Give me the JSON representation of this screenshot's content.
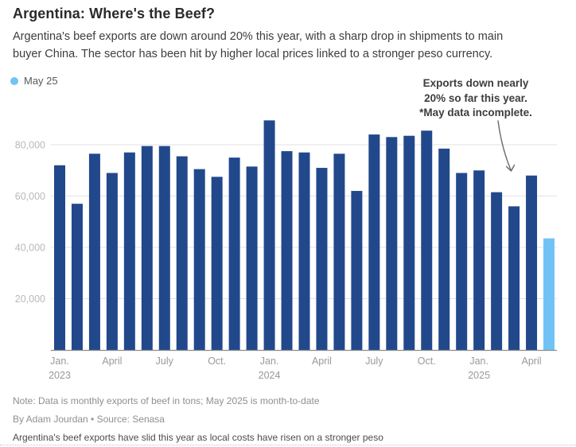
{
  "header": {
    "title": "Argentina: Where's the Beef?",
    "subtitle_line1": "Argentina's beef exports are down around 20% this year, with a sharp drop in shipments to main",
    "subtitle_line2": "buyer China. The sector has been hit by higher local prices linked to a stronger peso currency."
  },
  "legend": {
    "label": "May 25",
    "swatch_color": "#72C3F5"
  },
  "annotation": {
    "lines": [
      "Exports down nearly",
      "20% so far this year.",
      "*May data incomplete."
    ]
  },
  "chart_data": {
    "type": "bar",
    "title": "Argentina: Where's the Beef?",
    "categories": [
      "Jan 2023",
      "Feb 2023",
      "Mar 2023",
      "Apr 2023",
      "May 2023",
      "Jun 2023",
      "Jul 2023",
      "Aug 2023",
      "Sep 2023",
      "Oct 2023",
      "Nov 2023",
      "Dec 2023",
      "Jan 2024",
      "Feb 2024",
      "Mar 2024",
      "Apr 2024",
      "May 2024",
      "Jun 2024",
      "Jul 2024",
      "Aug 2024",
      "Sep 2024",
      "Oct 2024",
      "Nov 2024",
      "Dec 2024",
      "Jan 2025",
      "Feb 2025",
      "Mar 2025",
      "Apr 2025",
      "May 2025"
    ],
    "values": [
      72000,
      57000,
      76500,
      69000,
      77000,
      79500,
      79500,
      75500,
      70500,
      67500,
      75000,
      71500,
      89500,
      77500,
      77000,
      71000,
      76500,
      62000,
      84000,
      83000,
      83500,
      85500,
      78500,
      69000,
      70000,
      61500,
      56000,
      68000,
      43500
    ],
    "highlight_index": 28,
    "highlight_label": "May 25",
    "bar_color": "#22488C",
    "highlight_color": "#72C3F5",
    "grid_color": "#e3e3e3",
    "axis_color": "#8c8c8c",
    "ytick_color": "#b9b9b9",
    "xtick_color": "#999999",
    "ylim": [
      0,
      92000
    ],
    "grid": true,
    "legend_position": "top-left",
    "xlabel": "",
    "ylabel": "",
    "yticks": [
      {
        "value": 20000,
        "label": "20,000"
      },
      {
        "value": 40000,
        "label": "40,000"
      },
      {
        "value": 60000,
        "label": "60,000"
      },
      {
        "value": 80000,
        "label": "80,000"
      }
    ],
    "xticks": [
      {
        "index": 0,
        "label": "Jan.",
        "sublabel": "2023"
      },
      {
        "index": 3,
        "label": "April"
      },
      {
        "index": 6,
        "label": "July"
      },
      {
        "index": 9,
        "label": "Oct."
      },
      {
        "index": 12,
        "label": "Jan.",
        "sublabel": "2024"
      },
      {
        "index": 15,
        "label": "April"
      },
      {
        "index": 18,
        "label": "July"
      },
      {
        "index": 21,
        "label": "Oct."
      },
      {
        "index": 24,
        "label": "Jan.",
        "sublabel": "2025"
      },
      {
        "index": 27,
        "label": "April"
      }
    ]
  },
  "footer": {
    "note": "Note: Data is monthly exports of beef in tons; May 2025 is month-to-date",
    "byline": "By Adam Jourdan • Source: Senasa",
    "caption": "Argentina's beef exports have slid this year as local costs have risen on a stronger peso"
  }
}
